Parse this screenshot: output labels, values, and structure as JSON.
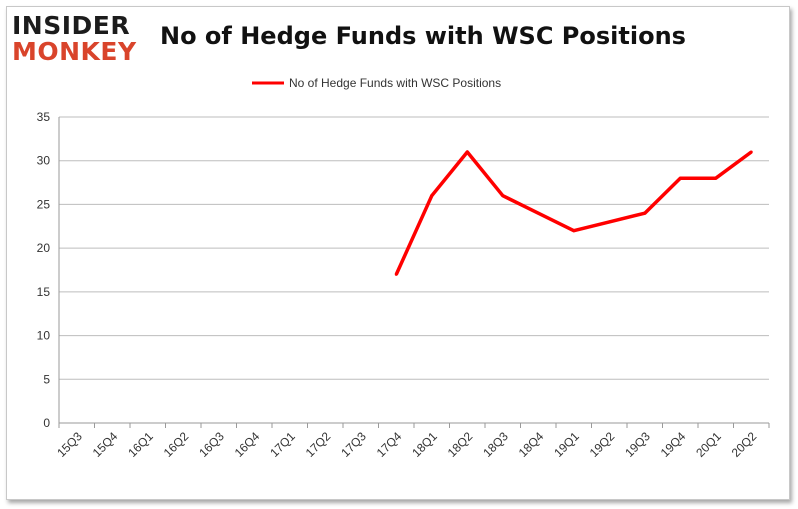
{
  "logo": {
    "top": "INSIDER",
    "bottom": "MONKEY"
  },
  "chart_data": {
    "type": "line",
    "title": "No of Hedge Funds with WSC Positions",
    "xlabel": "",
    "ylabel": "",
    "categories": [
      "15Q3",
      "15Q4",
      "16Q1",
      "16Q2",
      "16Q3",
      "16Q4",
      "17Q1",
      "17Q2",
      "17Q3",
      "17Q4",
      "18Q1",
      "18Q2",
      "18Q3",
      "18Q4",
      "19Q1",
      "19Q2",
      "19Q3",
      "19Q4",
      "20Q1",
      "20Q2"
    ],
    "series": [
      {
        "name": "No of Hedge Funds with WSC Positions",
        "color": "#ff0000",
        "values": [
          null,
          null,
          null,
          null,
          null,
          null,
          null,
          null,
          null,
          17,
          26,
          31,
          26,
          24,
          22,
          23,
          24,
          28,
          28,
          31
        ]
      }
    ],
    "ylim": [
      0,
      35
    ],
    "yticks": [
      0,
      5,
      10,
      15,
      20,
      25,
      30,
      35
    ],
    "grid": true,
    "legend": "top-center"
  }
}
